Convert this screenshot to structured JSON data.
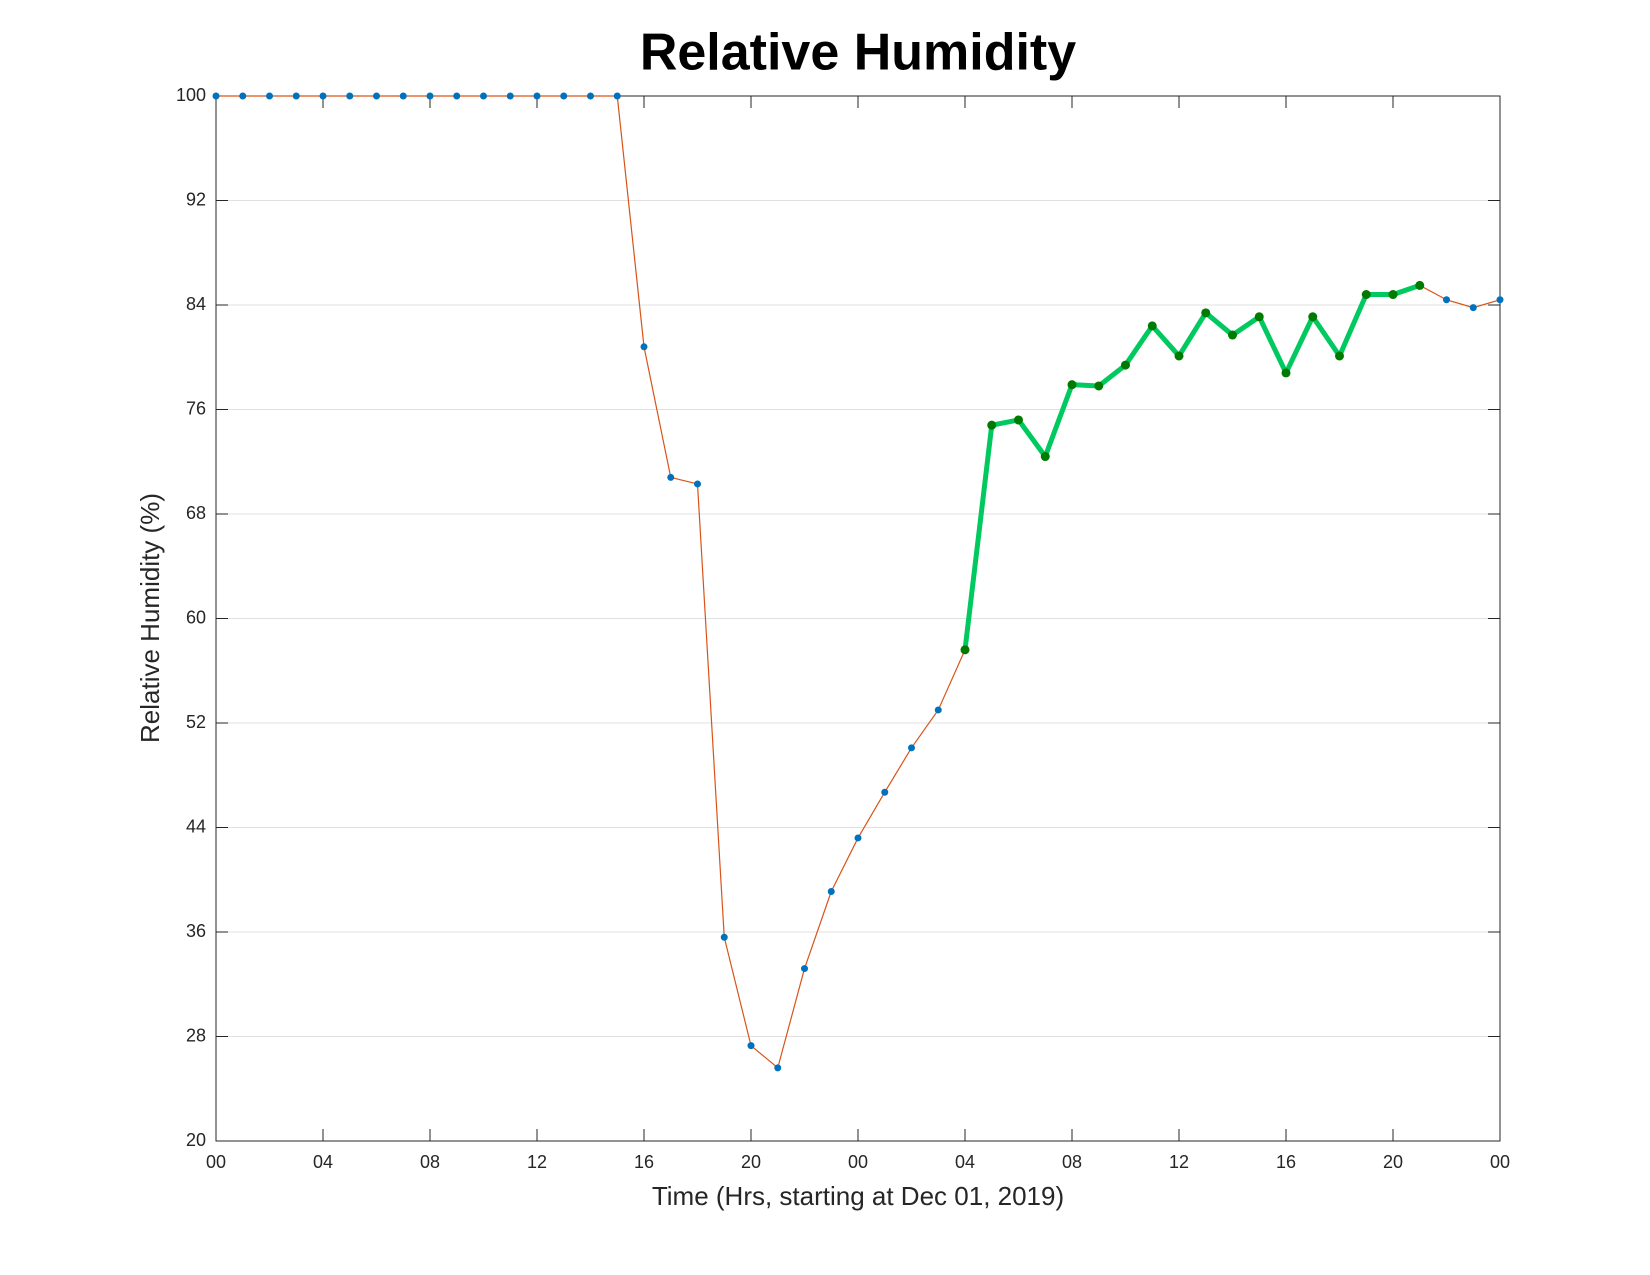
{
  "chart_data": {
    "type": "line",
    "title": "Relative Humidity",
    "xlabel": "Time (Hrs, starting at Dec 01, 2019)",
    "ylabel": "Relative Humidity (%)",
    "x": [
      0,
      1,
      2,
      3,
      4,
      5,
      6,
      7,
      8,
      9,
      10,
      11,
      12,
      13,
      14,
      15,
      16,
      17,
      18,
      19,
      20,
      21,
      22,
      23,
      24,
      25,
      26,
      27,
      28,
      29,
      30,
      31,
      32,
      33,
      34,
      35,
      36,
      37,
      38,
      39,
      40,
      41,
      42,
      43,
      44,
      45,
      46,
      47,
      48
    ],
    "series": [
      {
        "color": "#d95319",
        "marker_color": "#0072bd",
        "line_width": 1.2,
        "values": [
          100,
          100,
          100,
          100,
          100,
          100,
          100,
          100,
          100,
          100,
          100,
          100,
          100,
          100,
          100,
          100,
          80.8,
          70.8,
          70.3,
          35.6,
          27.3,
          25.6,
          33.2,
          39.1,
          43.2,
          46.7,
          50.1,
          53.0,
          57.6,
          74.8,
          75.2,
          72.4,
          77.9,
          77.8,
          79.4,
          82.4,
          80.1,
          83.4,
          81.7,
          83.1,
          78.8,
          83.1,
          80.1,
          84.8,
          84.8,
          85.5,
          84.4,
          83.8,
          84.4
        ]
      },
      {
        "color": "#00c95f",
        "marker_color": "#007a00",
        "line_width": 5,
        "values": [
          null,
          null,
          null,
          null,
          null,
          null,
          null,
          null,
          null,
          null,
          null,
          null,
          null,
          null,
          null,
          null,
          null,
          null,
          null,
          null,
          null,
          null,
          null,
          null,
          null,
          null,
          null,
          null,
          57.6,
          74.8,
          75.2,
          72.4,
          77.9,
          77.8,
          79.4,
          82.4,
          80.1,
          83.4,
          81.7,
          83.1,
          78.8,
          83.1,
          80.1,
          84.8,
          84.8,
          85.5,
          null,
          null,
          null
        ]
      }
    ],
    "xlim": [
      0,
      48
    ],
    "xticks": [
      {
        "value": 0,
        "label": "00"
      },
      {
        "value": 4,
        "label": "04"
      },
      {
        "value": 8,
        "label": "08"
      },
      {
        "value": 12,
        "label": "12"
      },
      {
        "value": 16,
        "label": "16"
      },
      {
        "value": 20,
        "label": "20"
      },
      {
        "value": 24,
        "label": "00"
      },
      {
        "value": 28,
        "label": "04"
      },
      {
        "value": 32,
        "label": "08"
      },
      {
        "value": 36,
        "label": "12"
      },
      {
        "value": 40,
        "label": "16"
      },
      {
        "value": 44,
        "label": "20"
      },
      {
        "value": 48,
        "label": "00"
      }
    ],
    "ylim": [
      20,
      100
    ],
    "yticks": [
      20,
      28,
      36,
      44,
      52,
      60,
      68,
      76,
      84,
      92,
      100
    ],
    "grid": true
  }
}
